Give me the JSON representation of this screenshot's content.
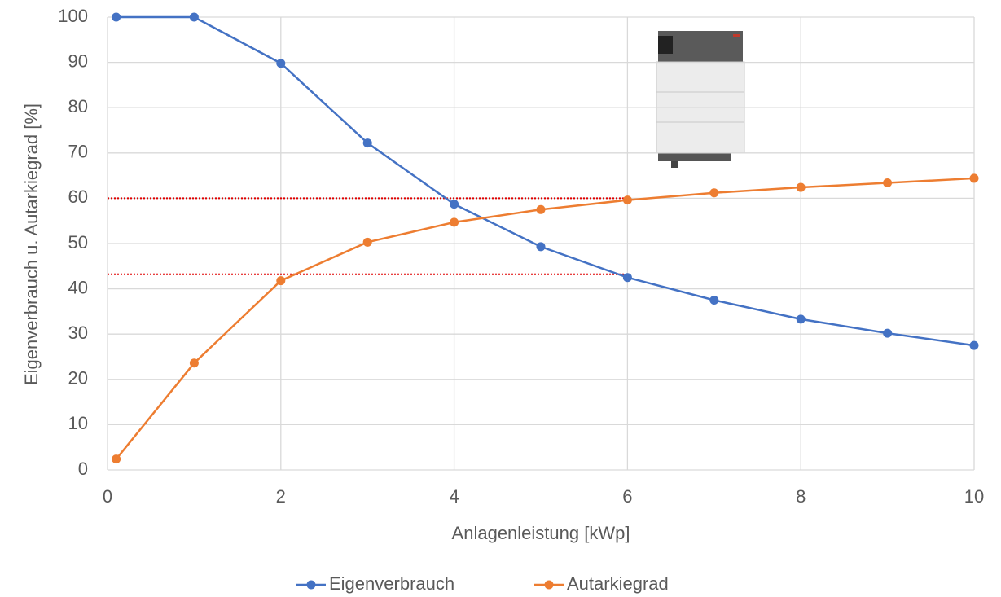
{
  "chart_data": {
    "type": "line",
    "x_label": "Anlagenleistung [kWp]",
    "y_label": "Eigenverbrauch u. Autarkiegrad [%]",
    "x": [
      0.1,
      1,
      2,
      3,
      4,
      5,
      6,
      7,
      8,
      9,
      10
    ],
    "series": [
      {
        "name": "Eigenverbrauch",
        "color": "#4472c4",
        "values": [
          100,
          100,
          89.8,
          72.2,
          58.7,
          49.3,
          42.5,
          37.5,
          33.3,
          30.2,
          27.5
        ]
      },
      {
        "name": "Autarkiegrad",
        "color": "#ed7d31",
        "values": [
          2.4,
          23.6,
          41.8,
          50.3,
          54.7,
          57.5,
          59.6,
          61.2,
          62.4,
          63.4,
          64.4
        ]
      }
    ],
    "reference_lines": [
      {
        "y": 60,
        "x": [
          0,
          6
        ]
      },
      {
        "y": 43.2,
        "x": [
          0,
          6
        ]
      }
    ],
    "reference_color": "#e00000",
    "xlim": [
      0,
      10
    ],
    "xticks": [
      0,
      2,
      4,
      6,
      8,
      10
    ],
    "ylim": [
      0,
      100
    ],
    "yticks": [
      0,
      10,
      20,
      30,
      40,
      50,
      60,
      70,
      80,
      90,
      100
    ],
    "grid": true,
    "legend": "bottom"
  }
}
